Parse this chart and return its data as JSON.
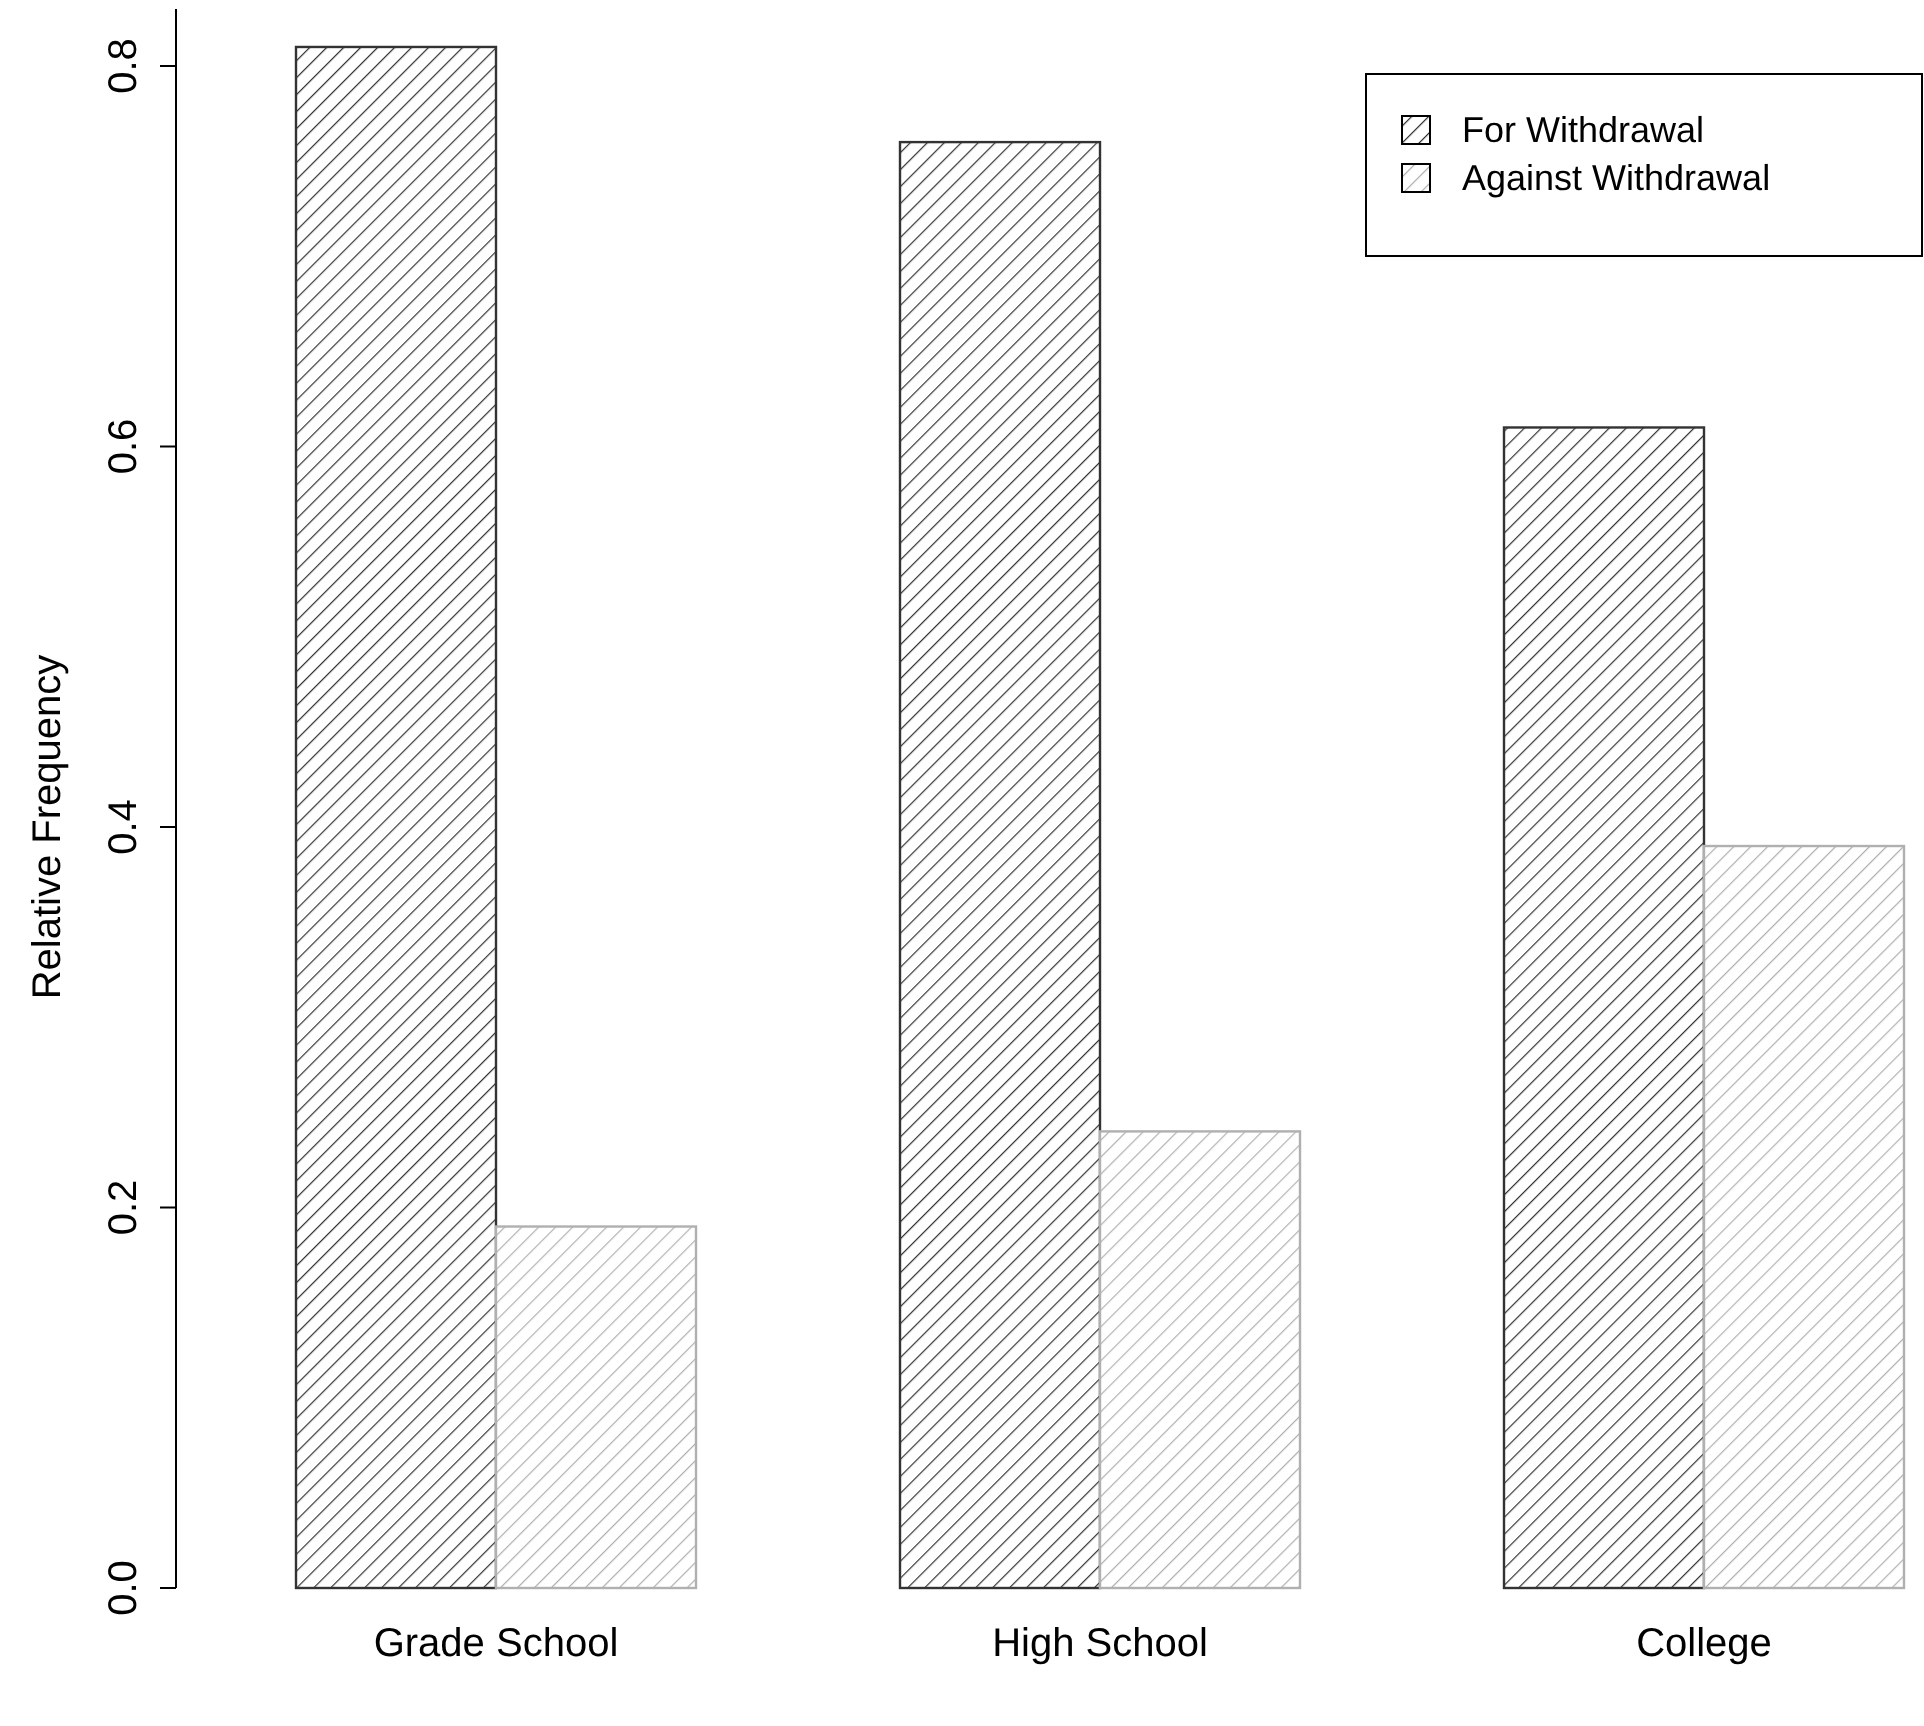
{
  "chart_data": {
    "type": "bar",
    "ylabel": "Relative Frequency",
    "categories": [
      "Grade School",
      "High School",
      "College"
    ],
    "series": [
      {
        "name": "For Withdrawal",
        "color": "#333333",
        "values": [
          0.81,
          0.76,
          0.61
        ]
      },
      {
        "name": "Against Withdrawal",
        "color": "#b0b0b0",
        "values": [
          0.19,
          0.24,
          0.39
        ]
      }
    ],
    "ylim": [
      0,
      0.83
    ],
    "yticks": [
      {
        "value": 0,
        "label": "0.0"
      },
      {
        "value": 0.2,
        "label": "0.2"
      },
      {
        "value": 0.4,
        "label": "0.4"
      },
      {
        "value": 0.6,
        "label": "0.6"
      },
      {
        "value": 0.8,
        "label": "0.8"
      }
    ],
    "legend": "top right",
    "grid": false
  }
}
